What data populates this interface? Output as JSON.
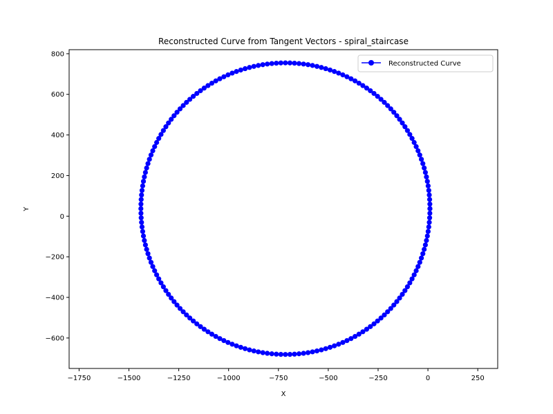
{
  "chart_data": {
    "type": "line",
    "title": "Reconstructed Curve from Tangent Vectors - spiral_staircase",
    "xlabel": "X",
    "ylabel": "Y",
    "xlim": [
      -1800,
      350
    ],
    "ylim": [
      -750,
      820
    ],
    "xticks": [
      -1750,
      -1500,
      -1250,
      -1000,
      -750,
      -500,
      -250,
      0,
      250
    ],
    "xtick_labels": [
      "−1750",
      "−1500",
      "−1250",
      "−1000",
      "−750",
      "−500",
      "−250",
      "0",
      "250"
    ],
    "yticks": [
      -600,
      -400,
      -200,
      0,
      200,
      400,
      600,
      800
    ],
    "ytick_labels": [
      "−600",
      "−400",
      "−200",
      "0",
      "200",
      "400",
      "600",
      "800"
    ],
    "grid": false,
    "legend": {
      "position": "top-right",
      "entries": [
        "Reconstructed Curve"
      ]
    },
    "colors": {
      "series": "#0000ff"
    },
    "series": [
      {
        "name": "Reconstructed Curve",
        "shape": "circle",
        "center": [
          -715,
          37
        ],
        "radius_x": 725,
        "radius_y": 718,
        "n_points": 200,
        "marker": "circle",
        "line": "solid"
      }
    ]
  }
}
